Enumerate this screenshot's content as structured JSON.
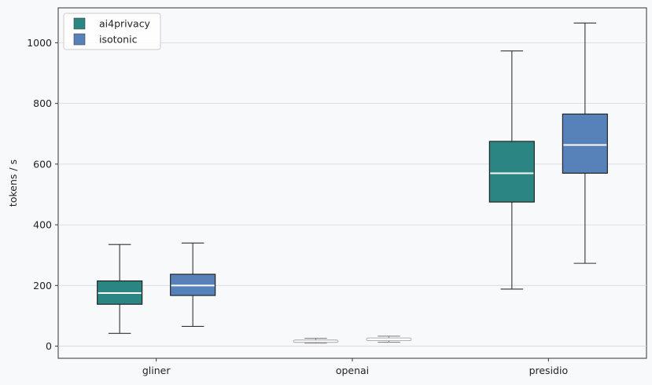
{
  "chart_data": {
    "type": "box",
    "title": "",
    "xlabel": "",
    "ylabel": "tokens / s",
    "ylim": [
      -40,
      1115
    ],
    "yticks": [
      0,
      200,
      400,
      600,
      800,
      1000
    ],
    "grid": "horizontal",
    "legend": "top-left",
    "categories": [
      "gliner",
      "openai",
      "presidio"
    ],
    "series": [
      {
        "name": "ai4privacy",
        "color": "#2a8583",
        "boxes": [
          {
            "whisker_low": 42,
            "q1": 138,
            "median": 175,
            "q3": 215,
            "whisker_high": 335
          },
          {
            "whisker_low": 10,
            "q1": 13,
            "median": 17,
            "q3": 20,
            "whisker_high": 26
          },
          {
            "whisker_low": 188,
            "q1": 475,
            "median": 570,
            "q3": 675,
            "whisker_high": 973
          }
        ]
      },
      {
        "name": "isotonic",
        "color": "#5681b9",
        "boxes": [
          {
            "whisker_low": 65,
            "q1": 167,
            "median": 200,
            "q3": 237,
            "whisker_high": 340
          },
          {
            "whisker_low": 13,
            "q1": 18,
            "median": 22,
            "q3": 27,
            "whisker_high": 33
          },
          {
            "whisker_low": 273,
            "q1": 570,
            "median": 663,
            "q3": 765,
            "whisker_high": 1065
          }
        ]
      }
    ]
  }
}
